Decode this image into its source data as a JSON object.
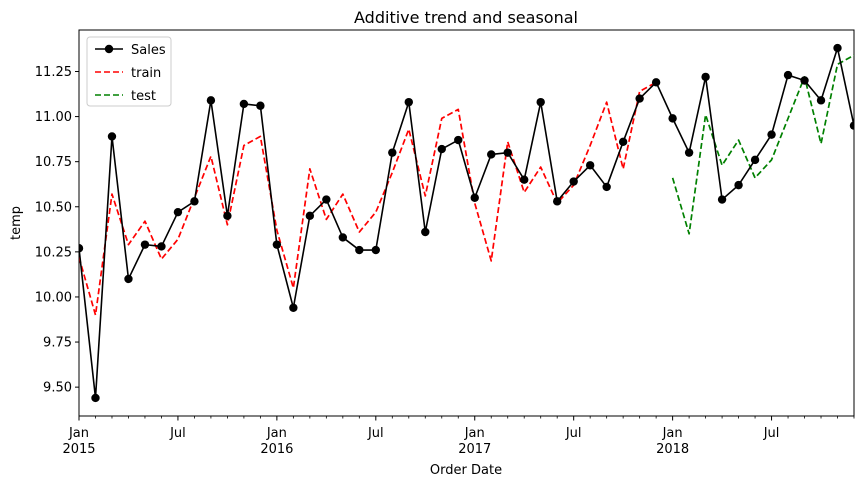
{
  "chart_data": {
    "type": "line",
    "title": "Additive trend and seasonal",
    "xlabel": "Order Date",
    "ylabel": "temp",
    "x_start": "2015-01",
    "x_end": "2018-12",
    "ylim": [
      9.34,
      11.48
    ],
    "y_ticks": [
      9.5,
      9.75,
      10.0,
      10.25,
      10.5,
      10.75,
      11.0,
      11.25
    ],
    "y_tick_labels": [
      "9.50",
      "9.75",
      "10.00",
      "10.25",
      "10.50",
      "10.75",
      "11.00",
      "11.25"
    ],
    "x_major_ticks": [
      {
        "date": "2015-01",
        "label": "Jan",
        "year": "2015"
      },
      {
        "date": "2015-07",
        "label": "Jul",
        "year": ""
      },
      {
        "date": "2016-01",
        "label": "Jan",
        "year": "2016"
      },
      {
        "date": "2016-07",
        "label": "Jul",
        "year": ""
      },
      {
        "date": "2017-01",
        "label": "Jan",
        "year": "2017"
      },
      {
        "date": "2017-07",
        "label": "Jul",
        "year": ""
      },
      {
        "date": "2018-01",
        "label": "Jan",
        "year": "2018"
      },
      {
        "date": "2018-07",
        "label": "Jul",
        "year": ""
      }
    ],
    "legend_position": "upper-left",
    "series": [
      {
        "name": "Sales",
        "color": "#000000",
        "style": "solid-marker",
        "x_start": "2015-01",
        "values": [
          10.27,
          9.44,
          10.89,
          10.1,
          10.29,
          10.28,
          10.47,
          10.53,
          11.09,
          10.45,
          11.07,
          11.06,
          10.29,
          9.94,
          10.45,
          10.54,
          10.33,
          10.26,
          10.26,
          10.8,
          11.08,
          10.36,
          10.82,
          10.87,
          10.55,
          10.79,
          10.8,
          10.65,
          11.08,
          10.53,
          10.64,
          10.73,
          10.61,
          10.86,
          11.1,
          11.19,
          10.99,
          10.8,
          11.22,
          10.54,
          10.62,
          10.76,
          10.9,
          11.23,
          11.2,
          11.09,
          11.38,
          10.95
        ]
      },
      {
        "name": "train",
        "color": "#ff0000",
        "style": "dashed",
        "x_start": "2015-01",
        "values": [
          10.22,
          9.9,
          10.57,
          10.29,
          10.42,
          10.21,
          10.32,
          10.55,
          10.78,
          10.4,
          10.84,
          10.89,
          10.37,
          10.05,
          10.71,
          10.43,
          10.57,
          10.36,
          10.47,
          10.69,
          10.93,
          10.56,
          10.99,
          11.04,
          10.52,
          10.2,
          10.86,
          10.58,
          10.72,
          10.52,
          10.62,
          10.84,
          11.08,
          10.71,
          11.14,
          11.19
        ]
      },
      {
        "name": "test",
        "color": "#008000",
        "style": "dashed",
        "x_start": "2018-01",
        "values": [
          10.66,
          10.35,
          11.01,
          10.73,
          10.87,
          10.66,
          10.76,
          10.99,
          11.22,
          10.85,
          11.29,
          11.34
        ]
      }
    ]
  }
}
